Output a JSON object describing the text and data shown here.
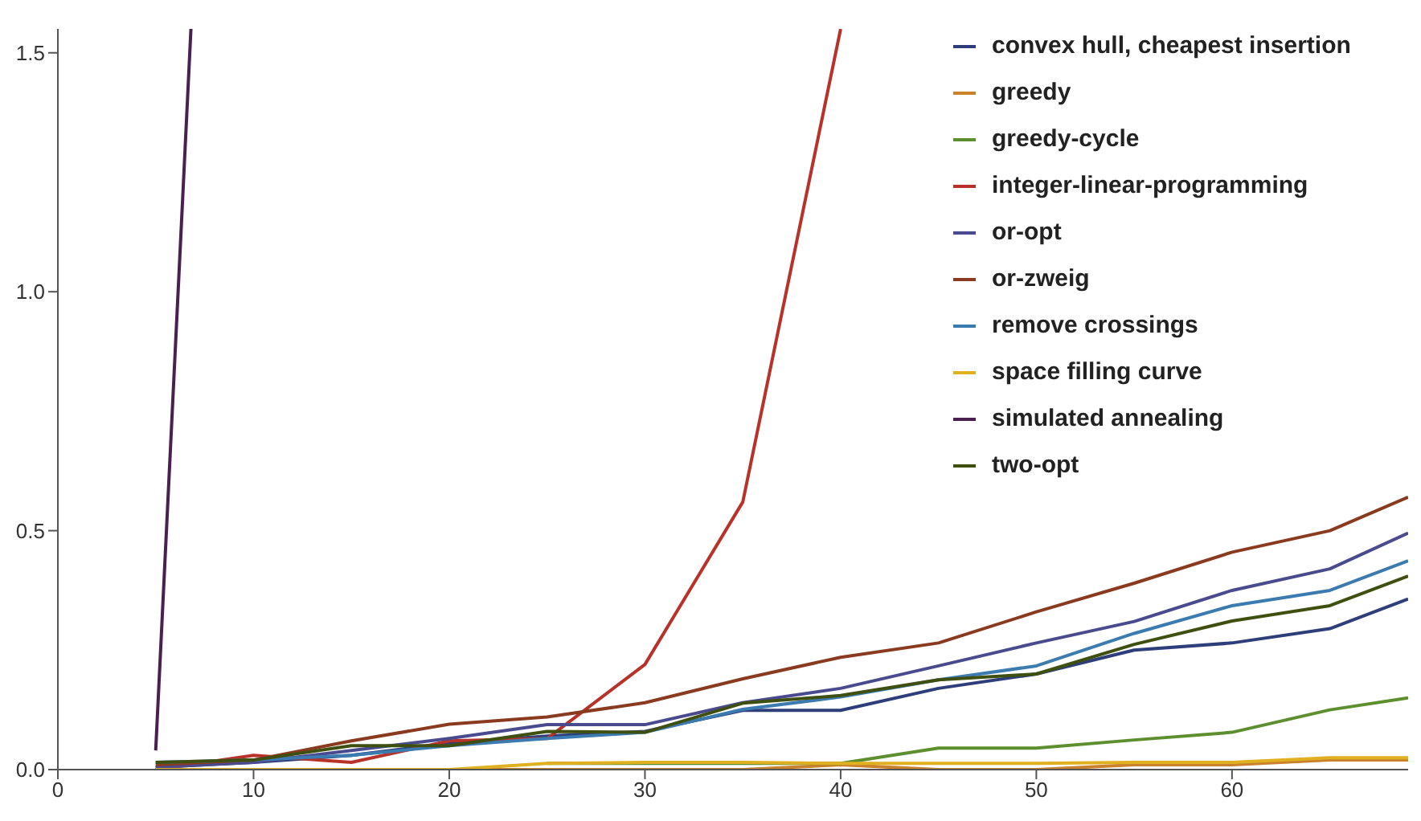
{
  "chart_data": {
    "type": "line",
    "x": [
      5,
      10,
      15,
      20,
      25,
      30,
      35,
      40,
      45,
      50,
      55,
      60,
      65,
      69
    ],
    "series": [
      {
        "name": "convex hull, cheapest insertion",
        "color": "#2d3e7a",
        "values": [
          0.005,
          0.015,
          0.03,
          0.055,
          0.07,
          0.08,
          0.124,
          0.124,
          0.17,
          0.2,
          0.25,
          0.265,
          0.295,
          0.357
        ]
      },
      {
        "name": "greedy",
        "color": "#c9822b",
        "values": [
          null,
          null,
          0,
          0,
          0,
          0,
          0,
          0.01,
          0,
          0,
          0.01,
          0.01,
          0.02,
          0.02
        ]
      },
      {
        "name": "greedy-cycle",
        "color": "#5e8f2e",
        "values": [
          null,
          null,
          null,
          null,
          0.013,
          0.013,
          0.013,
          0.013,
          0.045,
          0.045,
          0.062,
          0.078,
          0.125,
          0.15
        ]
      },
      {
        "name": "integer-linear-programming",
        "color": "#b8322a",
        "x": [
          5,
          10,
          15,
          20,
          25,
          30,
          35,
          40
        ],
        "values": [
          0,
          0.03,
          0.015,
          0.06,
          0.065,
          0.22,
          0.56,
          1.55
        ]
      },
      {
        "name": "or-opt",
        "color": "#4a4a8e",
        "values": [
          0.005,
          0.015,
          0.04,
          0.065,
          0.094,
          0.094,
          0.14,
          0.17,
          0.217,
          0.265,
          0.31,
          0.375,
          0.42,
          0.495
        ]
      },
      {
        "name": "or-zweig",
        "color": "#8a3a1e",
        "values": [
          0.01,
          0.02,
          0.06,
          0.095,
          0.11,
          0.14,
          0.19,
          0.235,
          0.265,
          0.33,
          0.39,
          0.455,
          0.5,
          0.57
        ]
      },
      {
        "name": "remove crossings",
        "color": "#3b7bb0",
        "values": [
          0.015,
          0.02,
          0.03,
          0.05,
          0.065,
          0.078,
          0.126,
          0.152,
          0.188,
          0.217,
          0.285,
          0.343,
          0.375,
          0.437
        ]
      },
      {
        "name": "space filling curve",
        "color": "#e0b020",
        "values": [
          0,
          0,
          0,
          0,
          0.013,
          0.015,
          0.015,
          0.013,
          0.013,
          0.013,
          0.015,
          0.015,
          0.025,
          0.025
        ]
      },
      {
        "name": "simulated annealing",
        "color": "#4a2050",
        "x": [
          5,
          6.8
        ],
        "values": [
          0.04,
          1.55
        ]
      },
      {
        "name": "two-opt",
        "color": "#3f4f10",
        "values": [
          0.015,
          0.02,
          0.05,
          0.05,
          0.08,
          0.078,
          0.139,
          0.155,
          0.188,
          0.2,
          0.262,
          0.311,
          0.343,
          0.405
        ]
      }
    ],
    "xlim": [
      0,
      69
    ],
    "xticks": [
      0,
      10,
      20,
      30,
      40,
      50,
      60
    ],
    "ylim": [
      0,
      1.55
    ],
    "yticks": [
      {
        "value": 0,
        "label": "0.0"
      },
      0.5,
      {
        "value": 1,
        "label": "1.0"
      },
      1.5
    ],
    "grid": false,
    "legend": "top right",
    "marker": "none",
    "line_style": "solid"
  }
}
